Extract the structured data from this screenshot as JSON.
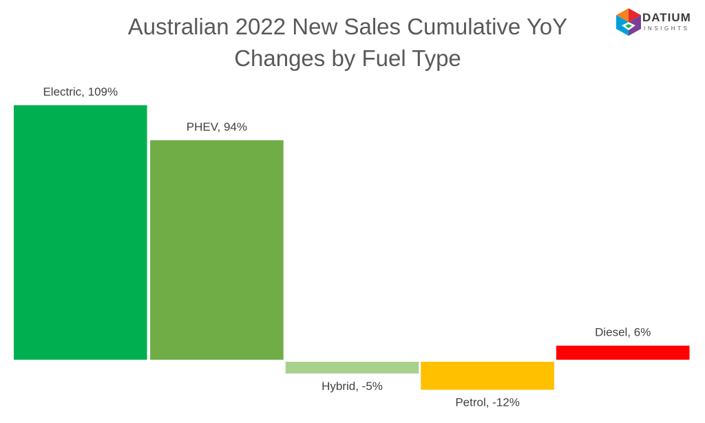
{
  "title": {
    "line1": "Australian 2022 New Sales Cumulative YoY",
    "line2": "Changes by Fuel Type"
  },
  "logo": {
    "name": "DATIUM",
    "tagline": "INSIGHTS",
    "icon": "datium-cube-icon"
  },
  "chart_data": {
    "type": "bar",
    "categories": [
      "Electric",
      "PHEV",
      "Hybrid",
      "Petrol",
      "Diesel"
    ],
    "values": [
      109,
      94,
      -5,
      -12,
      6
    ],
    "labels": [
      "Electric, 109%",
      "PHEV, 94%",
      "Hybrid, -5%",
      "Petrol, -12%",
      "Diesel, 6%"
    ],
    "colors": [
      "#00b050",
      "#70ad47",
      "#a9d18e",
      "#ffc000",
      "#ff0000"
    ],
    "value_unit": "%",
    "xlabel": "",
    "ylabel": "",
    "ylim": [
      -12,
      109
    ],
    "grid": false,
    "legend": "none"
  }
}
